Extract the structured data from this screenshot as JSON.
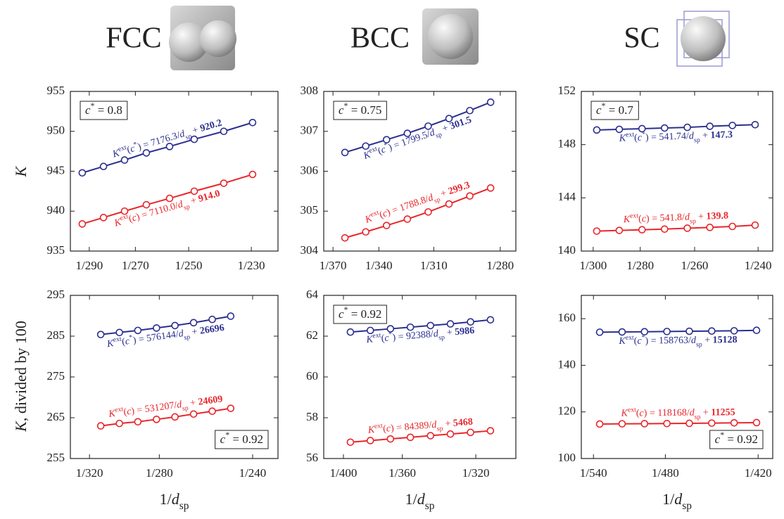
{
  "columns": [
    "FCC",
    "BCC",
    "SC"
  ],
  "y_labels": [
    [
      {
        "t": "K",
        "i": true
      }
    ],
    [
      {
        "t": "K",
        "i": true
      },
      {
        "t": ", divided by 100"
      }
    ]
  ],
  "x_label": [
    {
      "t": "1/"
    },
    {
      "t": "d",
      "i": true
    },
    {
      "t": "sp",
      "sub": true
    }
  ],
  "chart_data": [
    {
      "type": "line",
      "xlim": [
        0.003343,
        0.004496
      ],
      "xticks": [
        {
          "value": 0.003448,
          "label": "1/290"
        },
        {
          "value": 0.003704,
          "label": "1/270"
        },
        {
          "value": 0.004,
          "label": "1/250"
        },
        {
          "value": 0.004348,
          "label": "1/230"
        }
      ],
      "ylim": [
        935,
        955
      ],
      "yticks": [
        935,
        940,
        945,
        950,
        955
      ],
      "x": [
        0.003409,
        0.003527,
        0.003644,
        0.003765,
        0.003894,
        0.004031,
        0.004195,
        0.004355
      ],
      "c_star": [
        {
          "t": "c",
          "i": true
        },
        {
          "t": "*",
          "sup": true
        },
        {
          "t": " = 0.8"
        }
      ],
      "series": [
        {
          "color": "#2b2f8f",
          "values": [
            944.8,
            945.6,
            946.4,
            947.3,
            948.1,
            949.0,
            950.0,
            951.1
          ],
          "equation": [
            {
              "t": "K",
              "i": true
            },
            {
              "t": "ext",
              "sup": true
            },
            {
              "t": "("
            },
            {
              "t": "c",
              "i": true
            },
            {
              "t": "*",
              "sup": true
            },
            {
              "t": ") = 7176.3/"
            },
            {
              "t": "d",
              "i": true
            },
            {
              "t": "sp",
              "sub": true
            },
            {
              "t": " + "
            },
            {
              "t": "920.2",
              "b": true
            }
          ]
        },
        {
          "color": "#e8262a",
          "values": [
            938.4,
            939.2,
            940.0,
            940.8,
            941.6,
            942.5,
            943.5,
            944.6
          ],
          "equation": [
            {
              "t": "K",
              "i": true
            },
            {
              "t": "ext",
              "sup": true
            },
            {
              "t": "("
            },
            {
              "t": "c",
              "i": true
            },
            {
              "t": ") = 7110.0/"
            },
            {
              "t": "d",
              "i": true
            },
            {
              "t": "sp",
              "sub": true
            },
            {
              "t": " + "
            },
            {
              "t": "914.0",
              "b": true
            }
          ]
        }
      ]
    },
    {
      "type": "line",
      "xlim": [
        0.002655,
        0.003652
      ],
      "xticks": [
        {
          "value": 0.002703,
          "label": "1/370"
        },
        {
          "value": 0.002941,
          "label": "1/340"
        },
        {
          "value": 0.003226,
          "label": "1/310"
        },
        {
          "value": 0.003571,
          "label": "1/280"
        }
      ],
      "ylim": [
        304,
        308
      ],
      "yticks": [
        304,
        305,
        306,
        307,
        308
      ],
      "x": [
        0.002765,
        0.002873,
        0.002981,
        0.003089,
        0.003197,
        0.003305,
        0.003413,
        0.003521
      ],
      "c_star": [
        {
          "t": "c",
          "i": true
        },
        {
          "t": "*",
          "sup": true
        },
        {
          "t": " = 0.75"
        }
      ],
      "series": [
        {
          "color": "#2b2f8f",
          "values": [
            306.47,
            306.63,
            306.79,
            306.95,
            307.13,
            307.32,
            307.52,
            307.73
          ],
          "equation": [
            {
              "t": "K",
              "i": true
            },
            {
              "t": "ext",
              "sup": true
            },
            {
              "t": "("
            },
            {
              "t": "c",
              "i": true
            },
            {
              "t": "*",
              "sup": true
            },
            {
              "t": ") = 1799.5/"
            },
            {
              "t": "d",
              "i": true
            },
            {
              "t": "sp",
              "sub": true
            },
            {
              "t": " + "
            },
            {
              "t": "301.5",
              "b": true
            }
          ]
        },
        {
          "color": "#e8262a",
          "values": [
            304.33,
            304.48,
            304.64,
            304.8,
            304.98,
            305.18,
            305.38,
            305.58
          ],
          "equation": [
            {
              "t": "K",
              "i": true
            },
            {
              "t": "ext",
              "sup": true
            },
            {
              "t": "("
            },
            {
              "t": "c",
              "i": true
            },
            {
              "t": ") = 1788.8/"
            },
            {
              "t": "d",
              "i": true
            },
            {
              "t": "sp",
              "sub": true
            },
            {
              "t": " + "
            },
            {
              "t": "299.3",
              "b": true
            }
          ]
        }
      ]
    },
    {
      "type": "line",
      "xlim": [
        0.003273,
        0.004241
      ],
      "xticks": [
        {
          "value": 0.003333,
          "label": "1/300"
        },
        {
          "value": 0.003571,
          "label": "1/280"
        },
        {
          "value": 0.003846,
          "label": "1/260"
        },
        {
          "value": 0.004167,
          "label": "1/240"
        }
      ],
      "ylim": [
        140,
        152
      ],
      "yticks": [
        140,
        144,
        148,
        152
      ],
      "x": [
        0.003351,
        0.003465,
        0.00358,
        0.003694,
        0.003809,
        0.003923,
        0.004037,
        0.004152
      ],
      "c_star": [
        {
          "t": "c",
          "i": true
        },
        {
          "t": "*",
          "sup": true
        },
        {
          "t": " = 0.7"
        }
      ],
      "series": [
        {
          "color": "#2b2f8f",
          "values": [
            149.1,
            149.15,
            149.2,
            149.25,
            149.3,
            149.38,
            149.44,
            149.5
          ],
          "equation": [
            {
              "t": "K",
              "i": true
            },
            {
              "t": "ext",
              "sup": true
            },
            {
              "t": "("
            },
            {
              "t": "c",
              "i": true
            },
            {
              "t": "*",
              "sup": true
            },
            {
              "t": ") = 541.74/"
            },
            {
              "t": "d",
              "i": true
            },
            {
              "t": "sp",
              "sub": true
            },
            {
              "t": " + "
            },
            {
              "t": "147.3",
              "b": true
            }
          ]
        },
        {
          "color": "#e8262a",
          "values": [
            141.5,
            141.55,
            141.6,
            141.65,
            141.72,
            141.78,
            141.85,
            141.95
          ],
          "equation": [
            {
              "t": "K",
              "i": true
            },
            {
              "t": "ext",
              "sup": true
            },
            {
              "t": "("
            },
            {
              "t": "c",
              "i": true
            },
            {
              "t": ") = 541.8/"
            },
            {
              "t": "d",
              "i": true
            },
            {
              "t": "sp",
              "sub": true
            },
            {
              "t": " + "
            },
            {
              "t": "139.8",
              "b": true
            }
          ]
        }
      ]
    },
    {
      "type": "line",
      "xlim": [
        0.003003,
        0.004329
      ],
      "xticks": [
        {
          "value": 0.003125,
          "label": "1/320"
        },
        {
          "value": 0.003571,
          "label": "1/280"
        },
        {
          "value": 0.004167,
          "label": "1/240"
        }
      ],
      "ylim": [
        255,
        295
      ],
      "yticks": [
        255,
        265,
        275,
        285,
        295
      ],
      "x": [
        0.003197,
        0.003316,
        0.003434,
        0.003553,
        0.003671,
        0.00379,
        0.003909,
        0.004027
      ],
      "c_star": [
        {
          "t": "c",
          "i": true
        },
        {
          "t": "*",
          "sup": true
        },
        {
          "t": " = 0.92"
        }
      ],
      "series": [
        {
          "color": "#2b2f8f",
          "values": [
            285.4,
            285.9,
            286.4,
            287.0,
            287.6,
            288.3,
            289.1,
            289.9
          ],
          "equation": [
            {
              "t": "K",
              "i": true
            },
            {
              "t": "ext",
              "sup": true
            },
            {
              "t": "("
            },
            {
              "t": "c",
              "i": true
            },
            {
              "t": "*",
              "sup": true
            },
            {
              "t": ") = 576144/"
            },
            {
              "t": "d",
              "i": true
            },
            {
              "t": "sp",
              "sub": true
            },
            {
              "t": " + "
            },
            {
              "t": "26696",
              "b": true
            }
          ]
        },
        {
          "color": "#e8262a",
          "values": [
            263.0,
            263.6,
            264.0,
            264.6,
            265.2,
            265.9,
            266.6,
            267.3
          ],
          "equation": [
            {
              "t": "K",
              "i": true
            },
            {
              "t": "ext",
              "sup": true
            },
            {
              "t": "("
            },
            {
              "t": "c",
              "i": true
            },
            {
              "t": ") = 531207/"
            },
            {
              "t": "d",
              "i": true
            },
            {
              "t": "sp",
              "sub": true
            },
            {
              "t": " + "
            },
            {
              "t": "24609",
              "b": true
            }
          ]
        }
      ]
    },
    {
      "type": "line",
      "xlim": [
        0.002407,
        0.003314
      ],
      "xticks": [
        {
          "value": 0.0025,
          "label": "1/400"
        },
        {
          "value": 0.002778,
          "label": "1/360"
        },
        {
          "value": 0.003125,
          "label": "1/320"
        }
      ],
      "ylim": [
        56,
        64
      ],
      "yticks": [
        56,
        58,
        60,
        62,
        64
      ],
      "x": [
        0.002533,
        0.002627,
        0.002722,
        0.002816,
        0.002911,
        0.003005,
        0.0031,
        0.003194
      ],
      "c_star": [
        {
          "t": "c",
          "i": true
        },
        {
          "t": "*",
          "sup": true
        },
        {
          "t": " = 0.92"
        }
      ],
      "series": [
        {
          "color": "#2b2f8f",
          "values": [
            62.2,
            62.28,
            62.36,
            62.44,
            62.52,
            62.6,
            62.7,
            62.8
          ],
          "equation": [
            {
              "t": "K",
              "i": true
            },
            {
              "t": "ext",
              "sup": true
            },
            {
              "t": "("
            },
            {
              "t": "c",
              "i": true
            },
            {
              "t": "*",
              "sup": true
            },
            {
              "t": ") = 92388/"
            },
            {
              "t": "d",
              "i": true
            },
            {
              "t": "sp",
              "sub": true
            },
            {
              "t": " + "
            },
            {
              "t": "5986",
              "b": true
            }
          ]
        },
        {
          "color": "#e8262a",
          "values": [
            56.8,
            56.88,
            56.96,
            57.04,
            57.12,
            57.2,
            57.28,
            57.36
          ],
          "equation": [
            {
              "t": "K",
              "i": true
            },
            {
              "t": "ext",
              "sup": true
            },
            {
              "t": "("
            },
            {
              "t": "c",
              "i": true
            },
            {
              "t": ") = 84389/"
            },
            {
              "t": "d",
              "i": true
            },
            {
              "t": "sp",
              "sub": true
            },
            {
              "t": " + "
            },
            {
              "t": "5468",
              "b": true
            }
          ]
        }
      ]
    },
    {
      "type": "line",
      "xlim": [
        0.001813,
        0.002428
      ],
      "xticks": [
        {
          "value": 0.001852,
          "label": "1/540"
        },
        {
          "value": 0.002083,
          "label": "1/480"
        },
        {
          "value": 0.002381,
          "label": "1/420"
        }
      ],
      "ylim": [
        100,
        170
      ],
      "yticks": [
        100,
        120,
        140,
        160
      ],
      "x": [
        0.001872,
        0.001944,
        0.002016,
        0.002088,
        0.00216,
        0.002232,
        0.002304,
        0.002376
      ],
      "c_star": [
        {
          "t": "c",
          "i": true
        },
        {
          "t": "*",
          "sup": true
        },
        {
          "t": " = 0.92"
        }
      ],
      "series": [
        {
          "color": "#2b2f8f",
          "values": [
            154.2,
            154.3,
            154.4,
            154.5,
            154.6,
            154.7,
            154.8,
            155.0
          ],
          "equation": [
            {
              "t": "K",
              "i": true
            },
            {
              "t": "ext",
              "sup": true
            },
            {
              "t": "("
            },
            {
              "t": "c",
              "i": true
            },
            {
              "t": "*",
              "sup": true
            },
            {
              "t": ") = 158763/"
            },
            {
              "t": "d",
              "i": true
            },
            {
              "t": "sp",
              "sub": true
            },
            {
              "t": " + "
            },
            {
              "t": "15128",
              "b": true
            }
          ]
        },
        {
          "color": "#e8262a",
          "values": [
            114.8,
            114.9,
            114.95,
            115.0,
            115.1,
            115.2,
            115.3,
            115.4
          ],
          "equation": [
            {
              "t": "K",
              "i": true
            },
            {
              "t": "ext",
              "sup": true
            },
            {
              "t": "("
            },
            {
              "t": "c",
              "i": true
            },
            {
              "t": ") = 118168/"
            },
            {
              "t": "d",
              "i": true
            },
            {
              "t": "sp",
              "sub": true
            },
            {
              "t": " + "
            },
            {
              "t": "11255",
              "b": true
            }
          ]
        }
      ]
    }
  ]
}
